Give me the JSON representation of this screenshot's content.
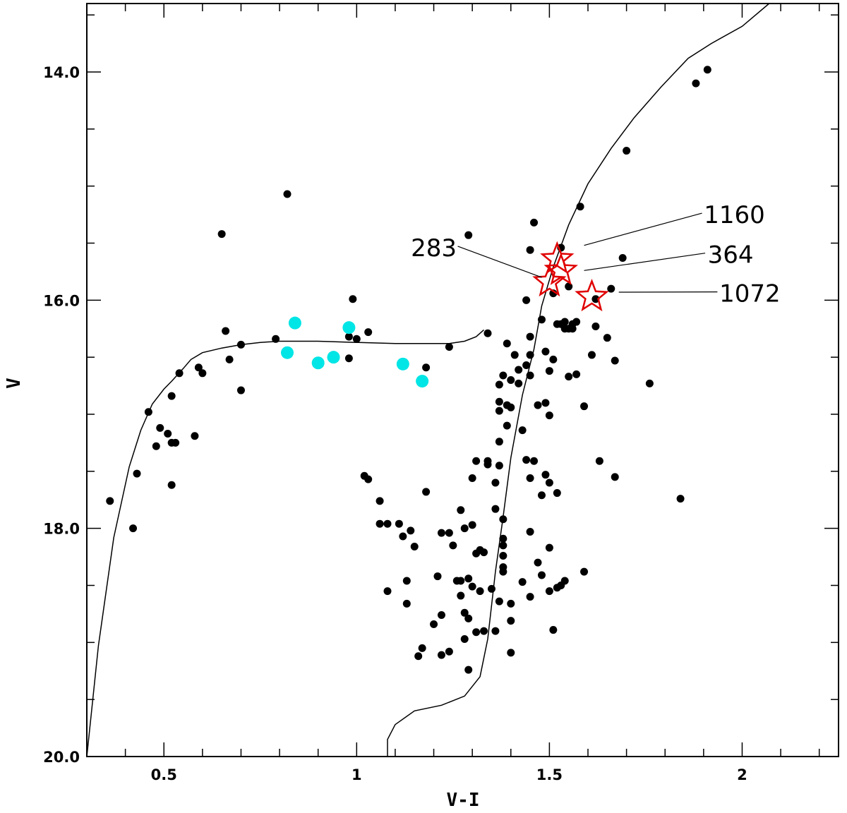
{
  "chart_data": {
    "type": "scatter",
    "title": "",
    "xlabel": "V-I",
    "ylabel": "V",
    "xlim": [
      0.3,
      2.25
    ],
    "ylim": [
      20.0,
      13.4
    ],
    "y_inverted": true,
    "grid": false,
    "x_ticks": [
      {
        "value": 0.5,
        "label": "0.5"
      },
      {
        "value": 1,
        "label": "1"
      },
      {
        "value": 1.5,
        "label": "1.5"
      },
      {
        "value": 2,
        "label": "2"
      }
    ],
    "y_ticks": [
      {
        "value": 14,
        "label": "14.0"
      },
      {
        "value": 16,
        "label": "16.0"
      },
      {
        "value": 18,
        "label": "18.0"
      },
      {
        "value": 20,
        "label": "20.0"
      }
    ],
    "series": [
      {
        "marker": "filled-circle",
        "color": "#000000",
        "points": [
          [
            0.36,
            17.76
          ],
          [
            0.42,
            18.0
          ],
          [
            0.43,
            17.52
          ],
          [
            0.46,
            16.98
          ],
          [
            0.48,
            17.28
          ],
          [
            0.49,
            17.12
          ],
          [
            0.51,
            17.17
          ],
          [
            0.52,
            16.84
          ],
          [
            0.52,
            17.25
          ],
          [
            0.52,
            17.62
          ],
          [
            0.53,
            17.25
          ],
          [
            0.54,
            16.64
          ],
          [
            0.58,
            17.19
          ],
          [
            0.59,
            16.59
          ],
          [
            0.6,
            16.64
          ],
          [
            0.65,
            15.42
          ],
          [
            0.66,
            16.27
          ],
          [
            0.67,
            16.52
          ],
          [
            0.7,
            16.39
          ],
          [
            0.7,
            16.79
          ],
          [
            0.79,
            16.34
          ],
          [
            0.82,
            15.07
          ],
          [
            0.98,
            16.32
          ],
          [
            0.98,
            16.51
          ],
          [
            0.99,
            15.99
          ],
          [
            1.0,
            16.34
          ],
          [
            1.03,
            16.28
          ],
          [
            1.02,
            17.54
          ],
          [
            1.03,
            17.57
          ],
          [
            1.06,
            17.76
          ],
          [
            1.06,
            17.96
          ],
          [
            1.08,
            17.96
          ],
          [
            1.08,
            18.55
          ],
          [
            1.11,
            17.96
          ],
          [
            1.12,
            18.07
          ],
          [
            1.13,
            18.46
          ],
          [
            1.13,
            18.66
          ],
          [
            1.14,
            18.02
          ],
          [
            1.15,
            18.16
          ],
          [
            1.16,
            19.12
          ],
          [
            1.17,
            19.05
          ],
          [
            1.18,
            16.59
          ],
          [
            1.18,
            17.68
          ],
          [
            1.2,
            18.84
          ],
          [
            1.21,
            18.42
          ],
          [
            1.22,
            18.04
          ],
          [
            1.22,
            18.76
          ],
          [
            1.22,
            19.11
          ],
          [
            1.24,
            18.04
          ],
          [
            1.24,
            16.41
          ],
          [
            1.24,
            19.08
          ],
          [
            1.25,
            18.15
          ],
          [
            1.26,
            18.46
          ],
          [
            1.27,
            17.84
          ],
          [
            1.27,
            18.46
          ],
          [
            1.27,
            18.59
          ],
          [
            1.28,
            18.0
          ],
          [
            1.28,
            18.74
          ],
          [
            1.28,
            18.97
          ],
          [
            1.29,
            19.24
          ],
          [
            1.29,
            18.44
          ],
          [
            1.29,
            18.79
          ],
          [
            1.29,
            15.43
          ],
          [
            1.3,
            17.97
          ],
          [
            1.3,
            17.56
          ],
          [
            1.3,
            18.51
          ],
          [
            1.31,
            18.22
          ],
          [
            1.31,
            17.41
          ],
          [
            1.31,
            18.91
          ],
          [
            1.32,
            18.19
          ],
          [
            1.32,
            18.55
          ],
          [
            1.33,
            18.9
          ],
          [
            1.33,
            18.21
          ],
          [
            1.34,
            17.44
          ],
          [
            1.34,
            17.41
          ],
          [
            1.34,
            16.29
          ],
          [
            1.35,
            18.53
          ],
          [
            1.36,
            17.83
          ],
          [
            1.36,
            17.6
          ],
          [
            1.36,
            18.9
          ],
          [
            1.37,
            17.45
          ],
          [
            1.37,
            16.74
          ],
          [
            1.37,
            16.97
          ],
          [
            1.37,
            17.24
          ],
          [
            1.37,
            16.89
          ],
          [
            1.37,
            18.64
          ],
          [
            1.38,
            18.09
          ],
          [
            1.38,
            18.15
          ],
          [
            1.38,
            18.24
          ],
          [
            1.38,
            18.34
          ],
          [
            1.38,
            16.66
          ],
          [
            1.38,
            17.92
          ],
          [
            1.38,
            18.38
          ],
          [
            1.39,
            16.38
          ],
          [
            1.39,
            17.1
          ],
          [
            1.39,
            16.92
          ],
          [
            1.4,
            16.7
          ],
          [
            1.4,
            18.66
          ],
          [
            1.4,
            18.81
          ],
          [
            1.4,
            16.94
          ],
          [
            1.4,
            19.09
          ],
          [
            1.41,
            16.48
          ],
          [
            1.42,
            16.61
          ],
          [
            1.42,
            16.73
          ],
          [
            1.43,
            17.14
          ],
          [
            1.43,
            18.47
          ],
          [
            1.44,
            17.4
          ],
          [
            1.44,
            16.57
          ],
          [
            1.44,
            16.0
          ],
          [
            1.45,
            16.32
          ],
          [
            1.45,
            16.48
          ],
          [
            1.45,
            16.66
          ],
          [
            1.45,
            17.56
          ],
          [
            1.45,
            18.03
          ],
          [
            1.45,
            18.6
          ],
          [
            1.45,
            15.56
          ],
          [
            1.46,
            15.32
          ],
          [
            1.46,
            17.41
          ],
          [
            1.47,
            16.92
          ],
          [
            1.47,
            18.3
          ],
          [
            1.48,
            16.17
          ],
          [
            1.48,
            17.71
          ],
          [
            1.48,
            18.41
          ],
          [
            1.49,
            16.45
          ],
          [
            1.49,
            16.9
          ],
          [
            1.49,
            17.53
          ],
          [
            1.5,
            18.55
          ],
          [
            1.5,
            17.01
          ],
          [
            1.5,
            16.62
          ],
          [
            1.5,
            17.6
          ],
          [
            1.5,
            18.17
          ],
          [
            1.51,
            15.94
          ],
          [
            1.51,
            16.52
          ],
          [
            1.51,
            18.89
          ],
          [
            1.52,
            18.52
          ],
          [
            1.52,
            16.21
          ],
          [
            1.52,
            17.69
          ],
          [
            1.53,
            18.5
          ],
          [
            1.53,
            16.21
          ],
          [
            1.53,
            15.54
          ],
          [
            1.54,
            18.46
          ],
          [
            1.54,
            16.25
          ],
          [
            1.54,
            16.19
          ],
          [
            1.55,
            15.88
          ],
          [
            1.55,
            16.25
          ],
          [
            1.55,
            16.67
          ],
          [
            1.56,
            16.25
          ],
          [
            1.56,
            16.21
          ],
          [
            1.57,
            16.65
          ],
          [
            1.57,
            16.19
          ],
          [
            1.58,
            15.18
          ],
          [
            1.59,
            18.38
          ],
          [
            1.59,
            16.93
          ],
          [
            1.61,
            16.48
          ],
          [
            1.62,
            16.23
          ],
          [
            1.62,
            15.99
          ],
          [
            1.63,
            17.41
          ],
          [
            1.65,
            16.33
          ],
          [
            1.66,
            15.9
          ],
          [
            1.67,
            16.53
          ],
          [
            1.67,
            17.55
          ],
          [
            1.69,
            15.63
          ],
          [
            1.7,
            14.69
          ],
          [
            1.76,
            16.73
          ],
          [
            1.84,
            17.74
          ],
          [
            1.88,
            14.1
          ],
          [
            1.91,
            13.98
          ]
        ]
      },
      {
        "marker": "filled-circle",
        "color": "#00e5e5",
        "points": [
          [
            0.84,
            16.2
          ],
          [
            0.82,
            16.46
          ],
          [
            0.9,
            16.55
          ],
          [
            0.94,
            16.5
          ],
          [
            0.98,
            16.24
          ],
          [
            1.12,
            16.56
          ],
          [
            1.17,
            16.71
          ]
        ]
      },
      {
        "marker": "open-star",
        "color": "#e00000",
        "points": [
          [
            1.52,
            15.64
          ],
          [
            1.53,
            15.74
          ],
          [
            1.5,
            15.84
          ],
          [
            1.61,
            15.97
          ]
        ]
      }
    ],
    "annotations": [
      {
        "text": "1160",
        "target": [
          1.59,
          15.52
        ],
        "label_at": [
          1.98,
          15.25
        ]
      },
      {
        "text": "364",
        "target": [
          1.59,
          15.74
        ],
        "label_at": [
          1.97,
          15.6
        ]
      },
      {
        "text": "283",
        "target": [
          1.48,
          15.8
        ],
        "label_at": [
          1.2,
          15.54
        ]
      },
      {
        "text": "1072",
        "target": [
          1.68,
          15.93
        ],
        "label_at": [
          2.02,
          15.94
        ]
      }
    ],
    "curves": [
      {
        "name": "",
        "color": "#000000",
        "points": [
          [
            0.3,
            20.0
          ],
          [
            0.33,
            19.03
          ],
          [
            0.37,
            18.08
          ],
          [
            0.41,
            17.46
          ],
          [
            0.44,
            17.14
          ],
          [
            0.47,
            16.91
          ],
          [
            0.5,
            16.78
          ],
          [
            0.52,
            16.71
          ],
          [
            0.55,
            16.6
          ],
          [
            0.57,
            16.52
          ],
          [
            0.6,
            16.46
          ],
          [
            0.65,
            16.42
          ],
          [
            0.7,
            16.39
          ],
          [
            0.75,
            16.37
          ],
          [
            0.8,
            16.36
          ],
          [
            0.9,
            16.36
          ],
          [
            1.0,
            16.37
          ],
          [
            1.1,
            16.38
          ],
          [
            1.2,
            16.38
          ],
          [
            1.24,
            16.38
          ],
          [
            1.28,
            16.36
          ],
          [
            1.31,
            16.32
          ],
          [
            1.33,
            16.26
          ]
        ]
      },
      {
        "name": "",
        "color": "#000000",
        "points": [
          [
            1.08,
            20.0
          ],
          [
            1.08,
            19.85
          ],
          [
            1.1,
            19.72
          ],
          [
            1.15,
            19.6
          ],
          [
            1.22,
            19.55
          ],
          [
            1.28,
            19.47
          ],
          [
            1.32,
            19.3
          ],
          [
            1.34,
            18.97
          ],
          [
            1.36,
            18.38
          ],
          [
            1.38,
            17.9
          ],
          [
            1.4,
            17.38
          ],
          [
            1.43,
            16.83
          ],
          [
            1.46,
            16.43
          ],
          [
            1.48,
            16.05
          ],
          [
            1.51,
            15.71
          ],
          [
            1.55,
            15.34
          ],
          [
            1.6,
            14.98
          ],
          [
            1.66,
            14.67
          ],
          [
            1.72,
            14.4
          ],
          [
            1.79,
            14.13
          ],
          [
            1.86,
            13.88
          ],
          [
            1.92,
            13.75
          ],
          [
            2.0,
            13.6
          ],
          [
            2.07,
            13.4
          ]
        ]
      }
    ]
  }
}
